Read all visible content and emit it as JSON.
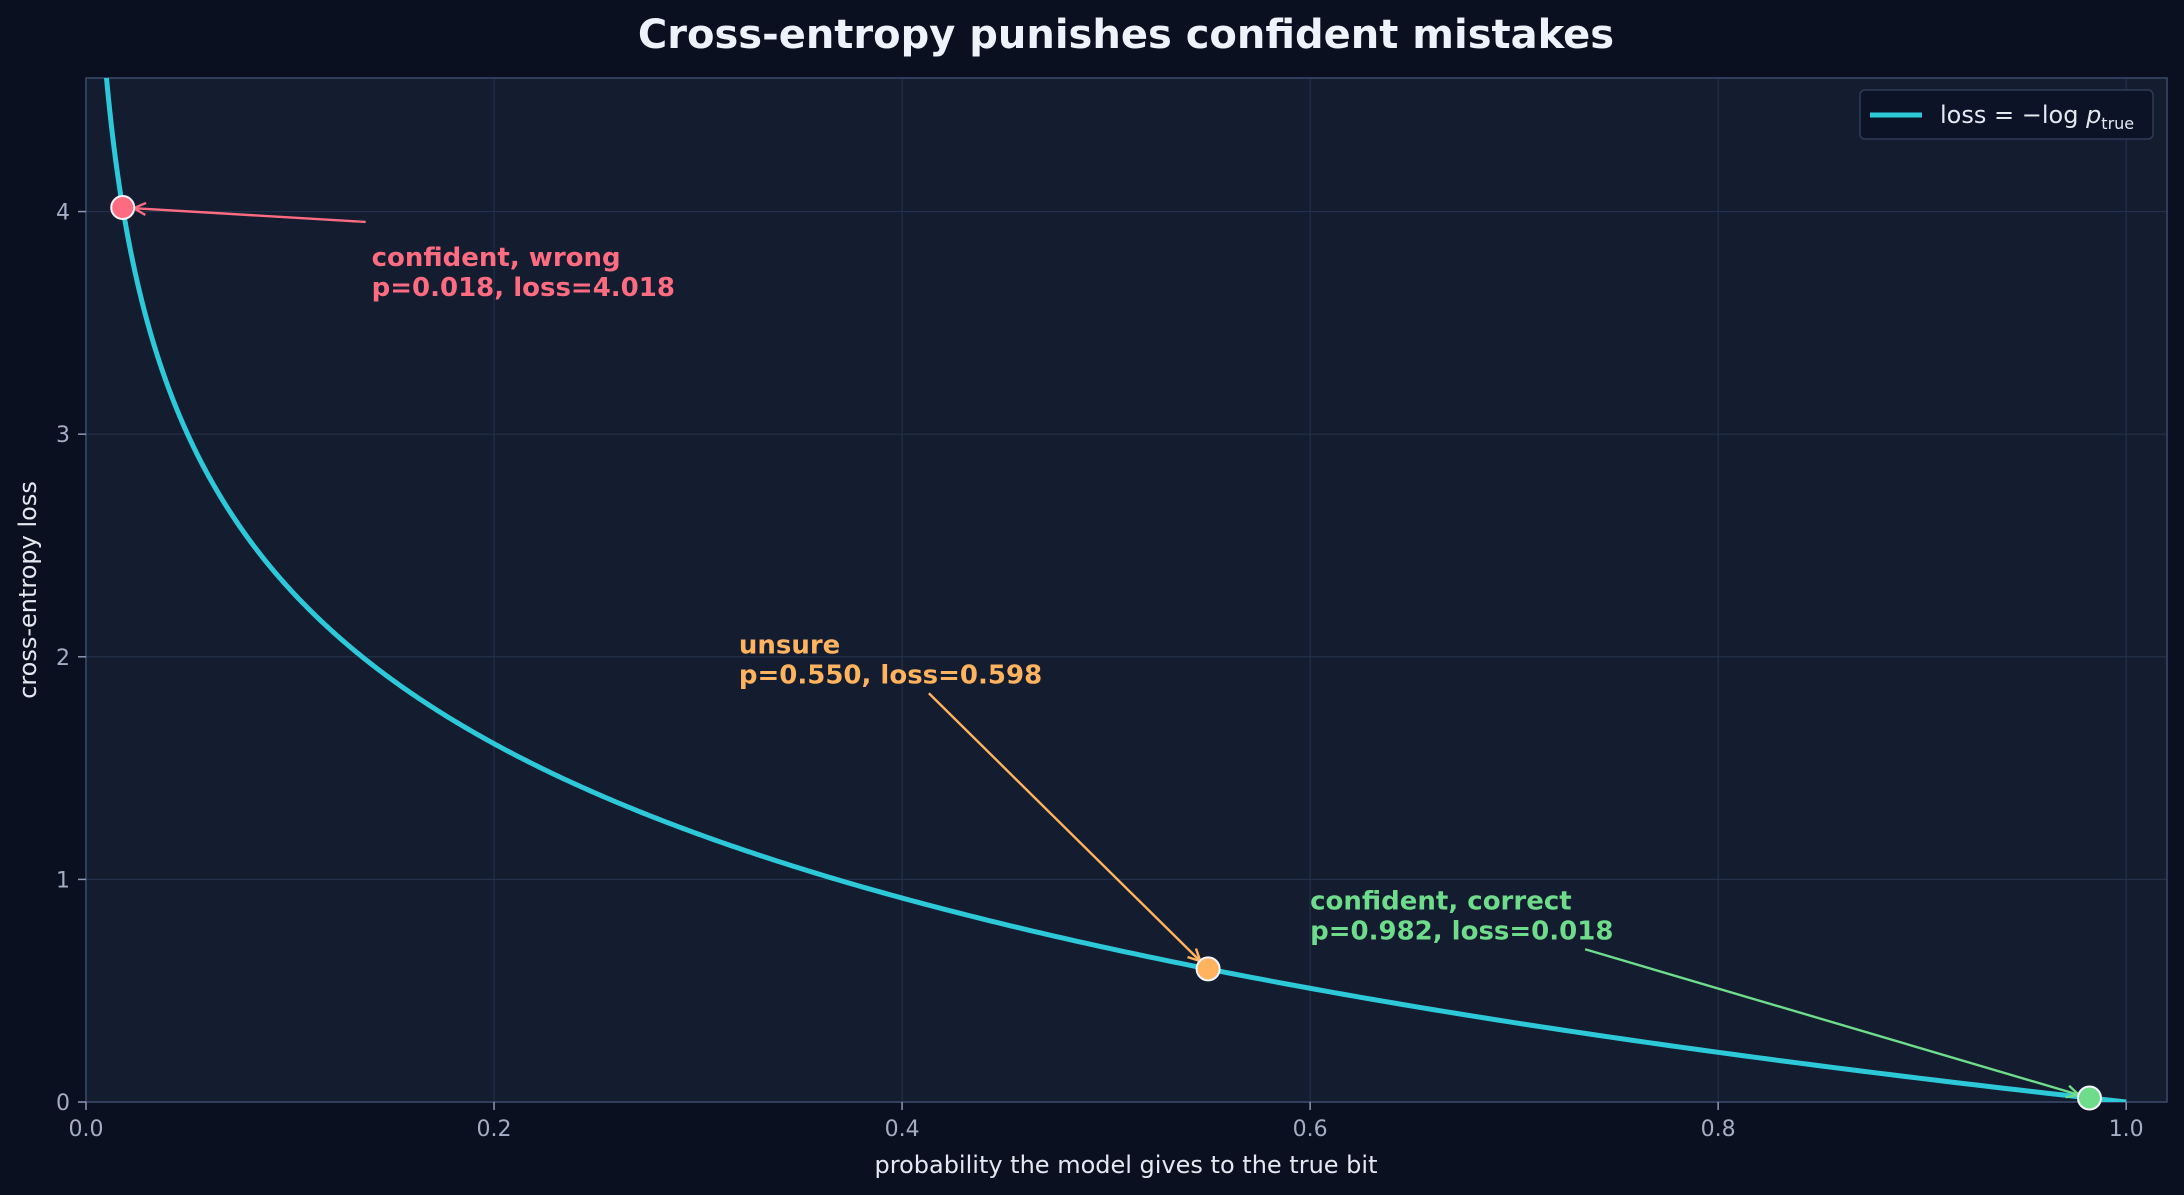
{
  "chart_data": {
    "type": "line",
    "title": "Cross-entropy punishes confident mistakes",
    "xlabel": "probability the model gives to the true bit",
    "ylabel": "cross-entropy loss",
    "xlim": [
      0.0,
      1.02
    ],
    "ylim": [
      0.0,
      4.6
    ],
    "x_ticks": [
      0.0,
      0.2,
      0.4,
      0.6,
      0.8,
      1.0
    ],
    "x_tick_labels": [
      "0.0",
      "0.2",
      "0.4",
      "0.6",
      "0.8",
      "1.0"
    ],
    "y_ticks": [
      0,
      1,
      2,
      3,
      4
    ],
    "y_tick_labels": [
      "0",
      "1",
      "2",
      "3",
      "4"
    ],
    "grid": true,
    "legend_position": "top-right",
    "series": [
      {
        "name": "loss = −log p_true",
        "legend": {
          "prefix": "loss",
          "middle": " = −log ",
          "var": "p",
          "sub": "true"
        },
        "function": "-ln(p)",
        "x_range": [
          0.001,
          1.0
        ],
        "color": "#2ec9d9"
      }
    ],
    "annotations": [
      {
        "label_line1": "confident, wrong",
        "label_line2": "p=0.018, loss=4.018",
        "x": 0.018,
        "y": 4.018,
        "text_x": 0.14,
        "text_y": 3.63,
        "color": "#ff6b81"
      },
      {
        "label_line1": "unsure",
        "label_line2": "p=0.550, loss=0.598",
        "x": 0.55,
        "y": 0.598,
        "text_x": 0.32,
        "text_y": 1.89,
        "color": "#ffb35e"
      },
      {
        "label_line1": "confident, correct",
        "label_line2": "p=0.982, loss=0.018",
        "x": 0.982,
        "y": 0.018,
        "text_x": 0.6,
        "text_y": 0.74,
        "color": "#6fdc8c"
      }
    ]
  },
  "colors": {
    "background": "#0b1020",
    "plot_background": "#141c30",
    "grid": "#223049",
    "axes_edge": "#3a4a6c",
    "curve": "#2ec9d9"
  }
}
